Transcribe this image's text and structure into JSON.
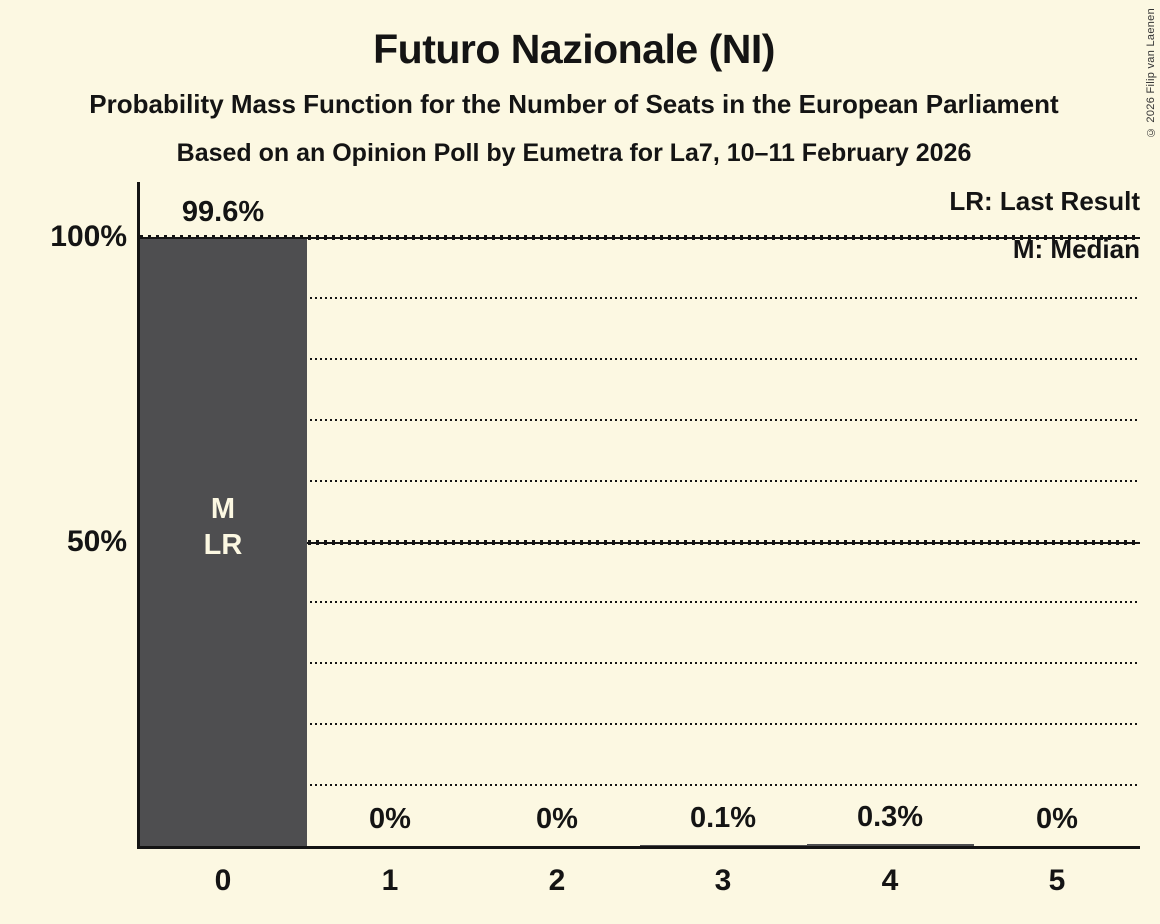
{
  "page": {
    "title": "Futuro Nazionale (NI)",
    "subtitle": "Probability Mass Function for the Number of Seats in the European Parliament",
    "subsubtitle": "Based on an Opinion Poll by Eumetra for La7, 10–11 February 2026",
    "copyright": "© 2026 Filip van Laenen"
  },
  "legend": {
    "last_result_label": "LR: Last Result",
    "median_label": "M: Median"
  },
  "colors": {
    "background": "#FCF8E2",
    "bar": "#4E4E50",
    "text": "#141414",
    "bar_text": "#FCF8E2"
  },
  "chart_data": {
    "type": "bar",
    "title": "Futuro Nazionale (NI)",
    "categories": [
      "0",
      "1",
      "2",
      "3",
      "4",
      "5"
    ],
    "values": [
      99.6,
      0,
      0,
      0.1,
      0.3,
      0
    ],
    "value_labels": [
      "99.6%",
      "0%",
      "0%",
      "0.1%",
      "0.3%",
      "0%"
    ],
    "ylim": [
      0,
      100
    ],
    "y_axis_labels": [
      {
        "text": "100%",
        "value": 100
      },
      {
        "text": "50%",
        "value": 50
      }
    ],
    "gridlines": {
      "minor_values": [
        10,
        20,
        30,
        40,
        60,
        70,
        80,
        90
      ],
      "minor_style": "dotted",
      "major_values": [
        50,
        100
      ],
      "major_style": "solid-dashed"
    },
    "annotations": [
      {
        "category_index": 0,
        "lines": [
          "M",
          "LR"
        ]
      }
    ],
    "legend_position": "top-right",
    "grid": true
  }
}
